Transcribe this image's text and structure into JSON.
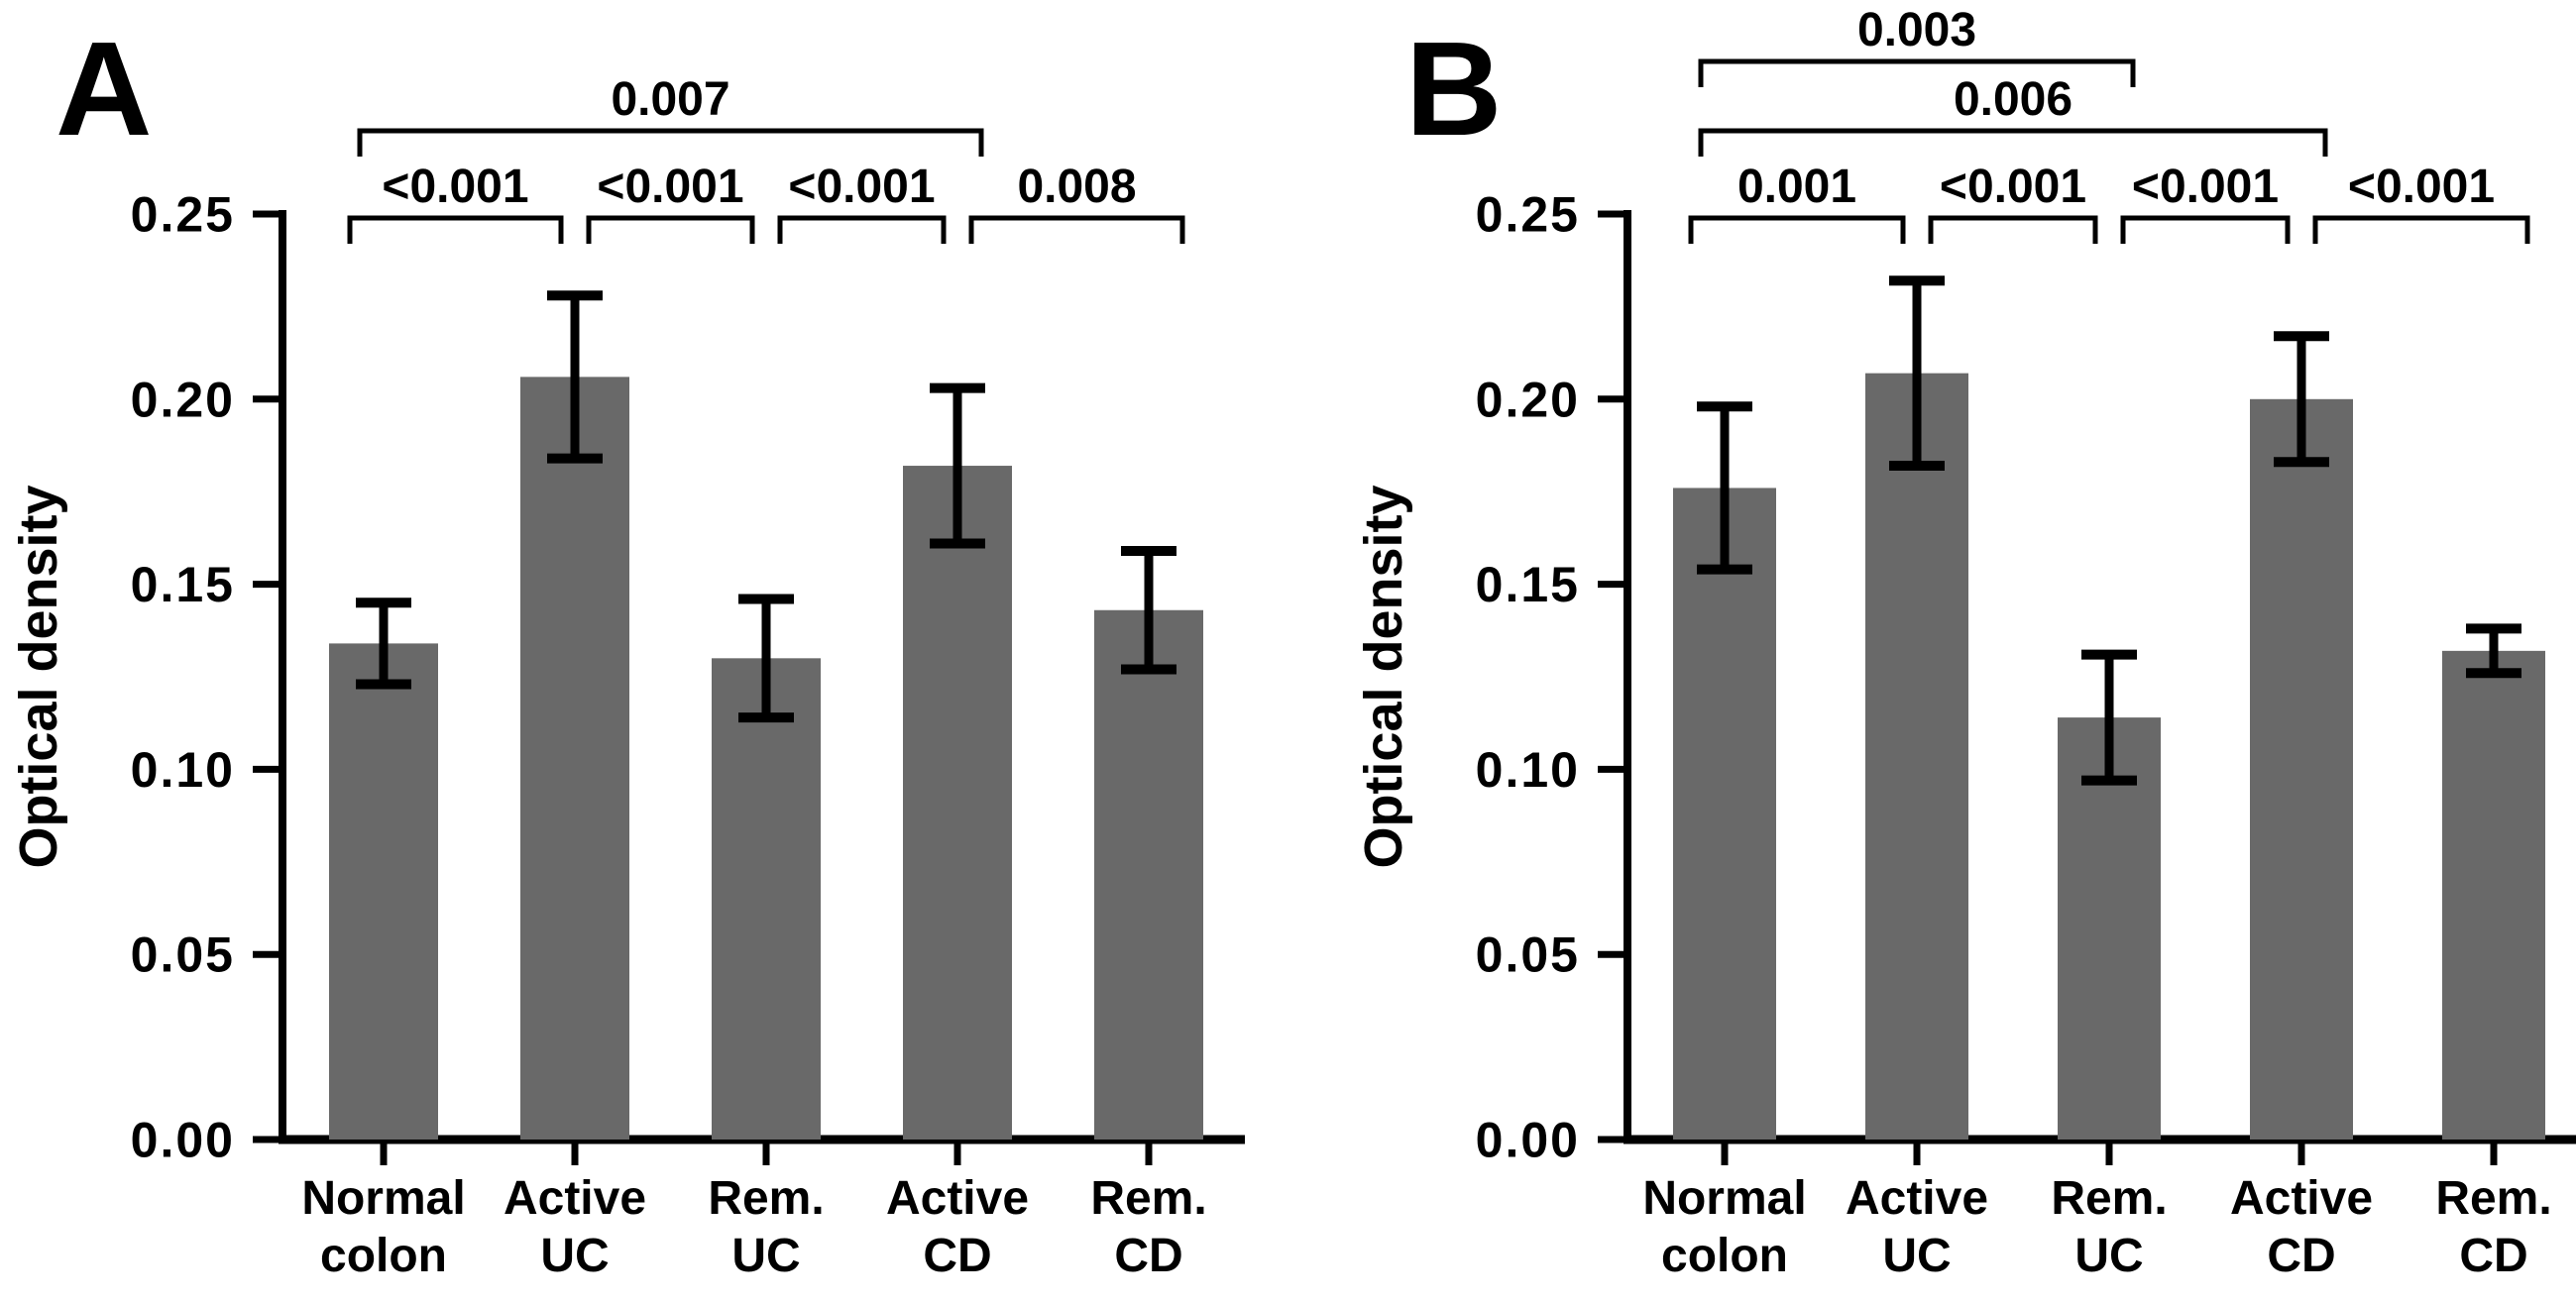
{
  "figure": {
    "background_color": "#ffffff",
    "bar_color": "#696969",
    "line_color": "#000000"
  },
  "chart_data": [
    {
      "type": "bar",
      "panel_label": "A",
      "ylabel": "Optical density",
      "ylim": [
        0,
        0.25
      ],
      "yticks": [
        0.0,
        0.05,
        0.1,
        0.15,
        0.2,
        0.25
      ],
      "ytick_labels": [
        "0.00",
        "0.05",
        "0.10",
        "0.15",
        "0.20",
        "0.25"
      ],
      "grid": false,
      "legend": "none",
      "categories": [
        {
          "line1": "Normal",
          "line2": "colon"
        },
        {
          "line1": "Active",
          "line2": "UC"
        },
        {
          "line1": "Rem.",
          "line2": "UC"
        },
        {
          "line1": "Active",
          "line2": "CD"
        },
        {
          "line1": "Rem.",
          "line2": "CD"
        }
      ],
      "values": [
        0.134,
        0.206,
        0.13,
        0.182,
        0.143
      ],
      "errors": [
        0.011,
        0.022,
        0.016,
        0.021,
        0.016
      ],
      "significance_brackets": [
        {
          "from": 0,
          "to": 3,
          "level": 2,
          "label": "0.007"
        },
        {
          "from": 0,
          "to": 1,
          "level": 1,
          "label": "<0.001"
        },
        {
          "from": 1,
          "to": 2,
          "level": 1,
          "label": "<0.001"
        },
        {
          "from": 2,
          "to": 3,
          "level": 1,
          "label": "<0.001"
        },
        {
          "from": 3,
          "to": 4,
          "level": 1,
          "label": "0.008"
        }
      ]
    },
    {
      "type": "bar",
      "panel_label": "B",
      "ylabel": "Optical density",
      "ylim": [
        0,
        0.25
      ],
      "yticks": [
        0.0,
        0.05,
        0.1,
        0.15,
        0.2,
        0.25
      ],
      "ytick_labels": [
        "0.00",
        "0.05",
        "0.10",
        "0.15",
        "0.20",
        "0.25"
      ],
      "grid": false,
      "legend": "none",
      "categories": [
        {
          "line1": "Normal",
          "line2": "colon"
        },
        {
          "line1": "Active",
          "line2": "UC"
        },
        {
          "line1": "Rem.",
          "line2": "UC"
        },
        {
          "line1": "Active",
          "line2": "CD"
        },
        {
          "line1": "Rem.",
          "line2": "CD"
        }
      ],
      "values": [
        0.176,
        0.207,
        0.114,
        0.2,
        0.132
      ],
      "errors": [
        0.022,
        0.025,
        0.017,
        0.017,
        0.006
      ],
      "significance_brackets": [
        {
          "from": 0,
          "to": 2,
          "level": 3,
          "label": "0.003"
        },
        {
          "from": 0,
          "to": 3,
          "level": 2,
          "label": "0.006"
        },
        {
          "from": 0,
          "to": 1,
          "level": 1,
          "label": "0.001"
        },
        {
          "from": 1,
          "to": 2,
          "level": 1,
          "label": "<0.001"
        },
        {
          "from": 2,
          "to": 3,
          "level": 1,
          "label": "<0.001"
        },
        {
          "from": 3,
          "to": 4,
          "level": 1,
          "label": "<0.001"
        }
      ]
    }
  ]
}
